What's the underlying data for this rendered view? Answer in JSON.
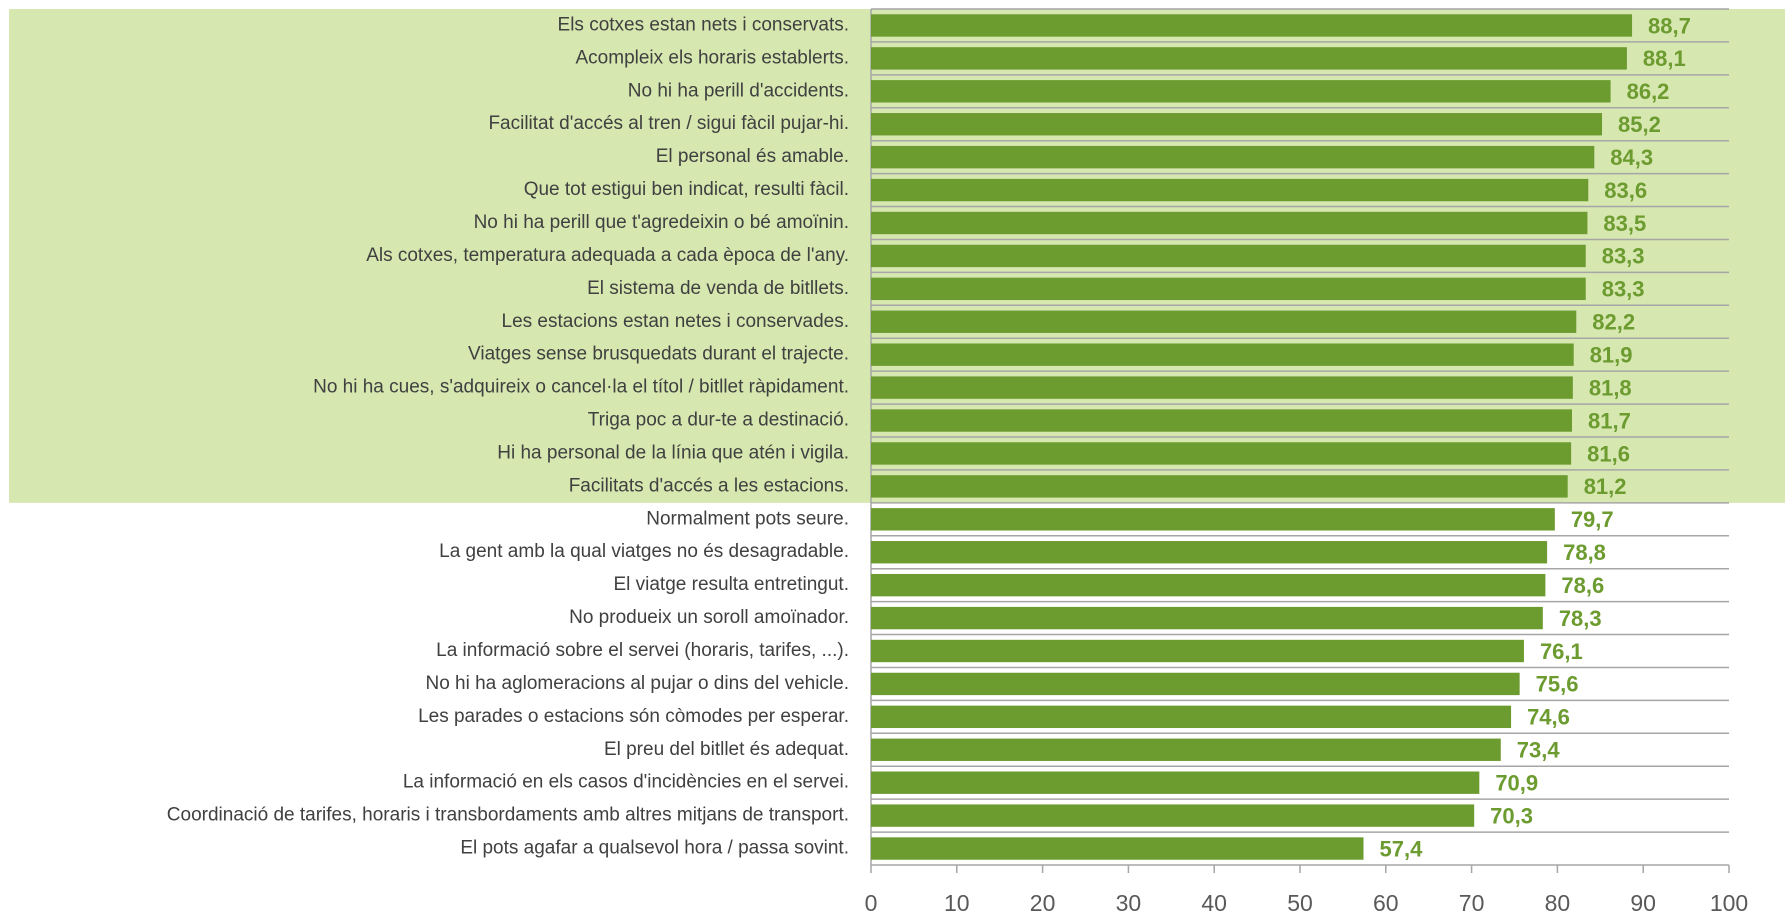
{
  "chart_data": {
    "type": "hbar",
    "categories": [
      "Els cotxes estan nets i conservats.",
      "Acompleix els horaris establerts.",
      "No hi ha perill d'accidents.",
      "Facilitat d'accés al tren / sigui fàcil pujar-hi.",
      "El personal és amable.",
      "Que tot estigui ben indicat, resulti fàcil.",
      "No hi ha perill que t'agredeixin o bé amoïnin.",
      "Als cotxes, temperatura adequada a cada època de l'any.",
      "El sistema de venda de bitllets.",
      "Les estacions estan netes i conservades.",
      "Viatges sense brusquedats durant el trajecte.",
      "No hi ha cues, s'adquireix o cancel·la el títol / bitllet ràpidament.",
      "Triga poc a dur-te a destinació.",
      "Hi ha personal de la línia que atén i vigila.",
      "Facilitats d'accés a les estacions.",
      "Normalment pots seure.",
      "La gent amb la qual viatges no és desagradable.",
      "El viatge resulta entretingut.",
      "No produeix un soroll amoïnador.",
      "La informació sobre el servei (horaris, tarifes, ...).",
      "No hi ha aglomeracions al pujar o dins del vehicle.",
      "Les parades o estacions són còmodes per esperar.",
      "El preu del bitllet és adequat.",
      "La informació en els casos d'incidències en el servei.",
      "Coordinació de tarifes, horaris i transbordaments amb altres mitjans de transport.",
      "El pots agafar a qualsevol hora / passa sovint."
    ],
    "values": [
      88.7,
      88.1,
      86.2,
      85.2,
      84.3,
      83.6,
      83.5,
      83.3,
      83.3,
      82.2,
      81.9,
      81.8,
      81.7,
      81.6,
      81.2,
      79.7,
      78.8,
      78.6,
      78.3,
      76.1,
      75.6,
      74.6,
      73.4,
      70.9,
      70.3,
      57.4
    ],
    "value_labels": [
      "88,7",
      "88,1",
      "86,2",
      "85,2",
      "84,3",
      "83,6",
      "83,5",
      "83,3",
      "83,3",
      "82,2",
      "81,9",
      "81,8",
      "81,7",
      "81,6",
      "81,2",
      "79,7",
      "78,8",
      "78,6",
      "78,3",
      "76,1",
      "75,6",
      "74,6",
      "73,4",
      "70,9",
      "70,3",
      "57,4"
    ],
    "color": "#6c9b2f",
    "xlim": [
      0,
      100
    ],
    "xticks": [
      0,
      10,
      20,
      30,
      40,
      50,
      60,
      70,
      80,
      90,
      100
    ],
    "grid": true
  }
}
